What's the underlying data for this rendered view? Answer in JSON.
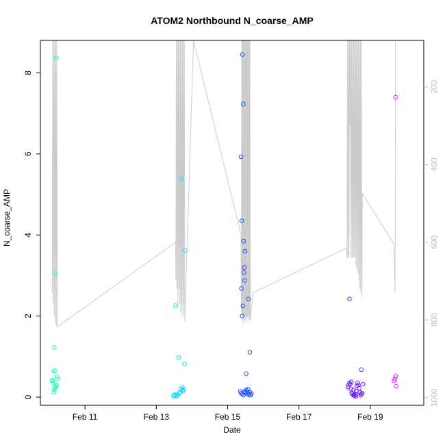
{
  "chart_data": {
    "type": "scatter",
    "title": "ATOM2 Northbound N_coarse_AMP",
    "xlabel": "Date",
    "ylabel": "N_coarse_AMP",
    "xlim": [
      "2024-02-09T18:00",
      "2024-02-20T12:00"
    ],
    "ylim": [
      -0.2,
      8.8
    ],
    "x_ticks": [
      {
        "label": "Feb 11",
        "x": "2024-02-11T00:00"
      },
      {
        "label": "Feb 13",
        "x": "2024-02-13T00:00"
      },
      {
        "label": "Feb 15",
        "x": "2024-02-15T00:00"
      },
      {
        "label": "Feb 17",
        "x": "2024-02-17T00:00"
      },
      {
        "label": "Feb 19",
        "x": "2024-02-19T00:00"
      }
    ],
    "y_ticks": [
      0,
      2,
      4,
      6,
      8
    ],
    "right_axis": {
      "ylim": [
        1020,
        80
      ],
      "ticks": [
        200,
        400,
        600,
        800,
        1000
      ],
      "color": "#bfbfbf"
    },
    "series": [
      {
        "color": "#19ffb2",
        "points": [
          [
            "2024-02-10T03:20",
            1.23
          ],
          [
            "2024-02-10T04:00",
            3.05
          ],
          [
            "2024-02-10T04:45",
            8.37
          ],
          [
            "2024-02-10T02:00",
            0.42
          ],
          [
            "2024-02-10T02:30",
            0.35
          ],
          [
            "2024-02-10T03:00",
            0.65
          ],
          [
            "2024-02-10T03:40",
            0.22
          ],
          [
            "2024-02-10T04:10",
            0.65
          ],
          [
            "2024-02-10T04:30",
            0.3
          ],
          [
            "2024-02-10T05:10",
            0.5
          ],
          [
            "2024-02-10T05:40",
            0.45
          ],
          [
            "2024-02-10T02:50",
            0.12
          ],
          [
            "2024-02-10T03:30",
            0.18
          ],
          [
            "2024-02-10T04:20",
            0.25
          ],
          [
            "2024-02-10T05:00",
            0.28
          ],
          [
            "2024-02-10T02:20",
            0.4
          ]
        ]
      },
      {
        "color": "#19d4ff",
        "points": [
          [
            "2024-02-13T11:30",
            0.03
          ],
          [
            "2024-02-13T12:00",
            0.06
          ],
          [
            "2024-02-13T13:00",
            2.26
          ],
          [
            "2024-02-13T14:00",
            0.07
          ],
          [
            "2024-02-13T15:00",
            0.98
          ],
          [
            "2024-02-13T15:30",
            0.1
          ],
          [
            "2024-02-13T16:00",
            0.12
          ],
          [
            "2024-02-13T16:30",
            0.2
          ],
          [
            "2024-02-13T17:00",
            5.38
          ],
          [
            "2024-02-13T17:30",
            0.25
          ],
          [
            "2024-02-13T18:00",
            0.15
          ],
          [
            "2024-02-13T18:30",
            0.2
          ],
          [
            "2024-02-13T19:00",
            0.82
          ],
          [
            "2024-02-13T19:30",
            3.62
          ],
          [
            "2024-02-13T13:30",
            0.02
          ],
          [
            "2024-02-13T14:30",
            0.05
          ],
          [
            "2024-02-13T17:45",
            0.18
          ],
          [
            "2024-02-13T12:30",
            0.04
          ]
        ]
      },
      {
        "color": "#1f4fff",
        "points": [
          [
            "2024-02-15T09:00",
            5.93
          ],
          [
            "2024-02-15T09:30",
            4.35
          ],
          [
            "2024-02-15T10:00",
            8.45
          ],
          [
            "2024-02-15T10:30",
            7.23
          ],
          [
            "2024-02-15T10:45",
            3.85
          ],
          [
            "2024-02-15T11:00",
            3.07
          ],
          [
            "2024-02-15T11:15",
            3.2
          ],
          [
            "2024-02-15T11:30",
            2.88
          ],
          [
            "2024-02-15T11:45",
            3.6
          ],
          [
            "2024-02-15T09:15",
            2.68
          ],
          [
            "2024-02-15T09:45",
            2.0
          ],
          [
            "2024-02-15T10:15",
            2.25
          ],
          [
            "2024-02-15T14:00",
            2.42
          ],
          [
            "2024-02-15T15:00",
            1.11
          ],
          [
            "2024-02-15T12:30",
            0.58
          ],
          [
            "2024-02-15T08:30",
            0.15
          ],
          [
            "2024-02-15T09:00",
            0.1
          ],
          [
            "2024-02-15T10:00",
            0.08
          ],
          [
            "2024-02-15T10:30",
            0.05
          ],
          [
            "2024-02-15T11:00",
            0.12
          ],
          [
            "2024-02-15T12:00",
            0.1
          ],
          [
            "2024-02-15T12:30",
            0.18
          ],
          [
            "2024-02-15T13:00",
            0.15
          ],
          [
            "2024-02-15T13:30",
            0.1
          ],
          [
            "2024-02-15T14:00",
            0.06
          ],
          [
            "2024-02-15T14:30",
            0.08
          ],
          [
            "2024-02-15T15:00",
            0.12
          ],
          [
            "2024-02-15T15:30",
            0.05
          ],
          [
            "2024-02-15T16:00",
            0.09
          ],
          [
            "2024-02-15T13:45",
            0.2
          ],
          [
            "2024-02-15T11:30",
            0.14
          ]
        ]
      },
      {
        "color": "#6a1fff",
        "points": [
          [
            "2024-02-18T10:00",
            2.42
          ],
          [
            "2024-02-18T18:00",
            0.68
          ],
          [
            "2024-02-18T09:00",
            0.25
          ],
          [
            "2024-02-18T09:30",
            0.3
          ],
          [
            "2024-02-18T10:00",
            0.35
          ],
          [
            "2024-02-18T10:30",
            0.32
          ],
          [
            "2024-02-18T11:00",
            0.2
          ],
          [
            "2024-02-18T11:30",
            0.1
          ],
          [
            "2024-02-18T12:00",
            0.08
          ],
          [
            "2024-02-18T12:30",
            0.05
          ],
          [
            "2024-02-18T13:00",
            0.06
          ],
          [
            "2024-02-18T13:30",
            0.04
          ],
          [
            "2024-02-18T14:00",
            0.07
          ],
          [
            "2024-02-18T14:30",
            0.15
          ],
          [
            "2024-02-18T15:00",
            0.28
          ],
          [
            "2024-02-18T15:30",
            0.35
          ],
          [
            "2024-02-18T16:00",
            0.3
          ],
          [
            "2024-02-18T16:30",
            0.22
          ],
          [
            "2024-02-18T17:00",
            0.12
          ],
          [
            "2024-02-18T17:30",
            0.05
          ],
          [
            "2024-02-18T18:00",
            0.08
          ],
          [
            "2024-02-18T18:30",
            0.1
          ],
          [
            "2024-02-18T19:00",
            0.32
          ],
          [
            "2024-02-18T11:15",
            0.38
          ],
          [
            "2024-02-18T12:45",
            0.18
          ],
          [
            "2024-02-18T14:15",
            0.02
          ]
        ]
      },
      {
        "color": "#e619ff",
        "points": [
          [
            "2024-02-19T17:00",
            7.4
          ],
          [
            "2024-02-19T16:00",
            0.4
          ],
          [
            "2024-02-19T16:30",
            0.45
          ],
          [
            "2024-02-19T17:00",
            0.52
          ],
          [
            "2024-02-19T17:30",
            0.27
          ]
        ]
      }
    ],
    "depth_trace": {
      "color": "#cccccc",
      "axis": "right",
      "points": [
        [
          "2024-02-10T02:00",
          730
        ],
        [
          "2024-02-10T02:20",
          80
        ],
        [
          "2024-02-10T02:40",
          760
        ],
        [
          "2024-02-10T03:00",
          80
        ],
        [
          "2024-02-10T03:20",
          790
        ],
        [
          "2024-02-10T03:40",
          80
        ],
        [
          "2024-02-10T04:00",
          810
        ],
        [
          "2024-02-10T04:20",
          80
        ],
        [
          "2024-02-10T04:40",
          815
        ],
        [
          "2024-02-10T05:00",
          80
        ],
        [
          "2024-02-10T05:20",
          818
        ],
        [
          "2024-02-13T13:00",
          600
        ],
        [
          "2024-02-13T13:10",
          700
        ],
        [
          "2024-02-13T13:30",
          80
        ],
        [
          "2024-02-13T13:50",
          720
        ],
        [
          "2024-02-13T14:10",
          80
        ],
        [
          "2024-02-13T14:30",
          770
        ],
        [
          "2024-02-13T14:50",
          80
        ],
        [
          "2024-02-13T15:10",
          720
        ],
        [
          "2024-02-13T15:30",
          80
        ],
        [
          "2024-02-13T15:50",
          760
        ],
        [
          "2024-02-13T16:10",
          80
        ],
        [
          "2024-02-13T16:30",
          780
        ],
        [
          "2024-02-13T16:50",
          80
        ],
        [
          "2024-02-13T17:10",
          790
        ],
        [
          "2024-02-13T17:30",
          80
        ],
        [
          "2024-02-13T17:50",
          760
        ],
        [
          "2024-02-13T18:10",
          80
        ],
        [
          "2024-02-13T18:30",
          790
        ],
        [
          "2024-02-13T18:50",
          80
        ],
        [
          "2024-02-13T19:10",
          805
        ],
        [
          "2024-02-14T01:00",
          80
        ],
        [
          "2024-02-15T09:00",
          580
        ],
        [
          "2024-02-15T09:15",
          780
        ],
        [
          "2024-02-15T09:30",
          80
        ],
        [
          "2024-02-15T09:45",
          790
        ],
        [
          "2024-02-15T10:00",
          80
        ],
        [
          "2024-02-15T10:15",
          800
        ],
        [
          "2024-02-15T10:30",
          80
        ],
        [
          "2024-02-15T10:45",
          810
        ],
        [
          "2024-02-15T11:00",
          80
        ],
        [
          "2024-02-15T11:15",
          790
        ],
        [
          "2024-02-15T11:30",
          80
        ],
        [
          "2024-02-15T11:45",
          800
        ],
        [
          "2024-02-15T12:00",
          80
        ],
        [
          "2024-02-15T12:15",
          795
        ],
        [
          "2024-02-15T12:30",
          80
        ],
        [
          "2024-02-15T12:45",
          805
        ],
        [
          "2024-02-15T13:00",
          80
        ],
        [
          "2024-02-15T13:15",
          790
        ],
        [
          "2024-02-15T13:30",
          80
        ],
        [
          "2024-02-15T13:45",
          800
        ],
        [
          "2024-02-15T14:00",
          80
        ],
        [
          "2024-02-15T14:15",
          790
        ],
        [
          "2024-02-15T14:30",
          80
        ],
        [
          "2024-02-15T14:45",
          800
        ],
        [
          "2024-02-15T15:00",
          80
        ],
        [
          "2024-02-15T15:15",
          800
        ],
        [
          "2024-02-15T17:00",
          730
        ],
        [
          "2024-02-18T08:00",
          615
        ],
        [
          "2024-02-18T08:20",
          640
        ],
        [
          "2024-02-18T08:40",
          80
        ],
        [
          "2024-02-18T09:00",
          640
        ],
        [
          "2024-02-18T09:20",
          80
        ],
        [
          "2024-02-18T09:40",
          640
        ],
        [
          "2024-02-18T10:00",
          80
        ],
        [
          "2024-02-18T10:20",
          300
        ],
        [
          "2024-02-18T10:40",
          80
        ],
        [
          "2024-02-18T11:00",
          640
        ],
        [
          "2024-02-18T11:20",
          80
        ],
        [
          "2024-02-18T11:40",
          640
        ],
        [
          "2024-02-18T12:00",
          80
        ],
        [
          "2024-02-18T12:20",
          640
        ],
        [
          "2024-02-18T12:40",
          80
        ],
        [
          "2024-02-18T13:00",
          640
        ],
        [
          "2024-02-18T13:20",
          80
        ],
        [
          "2024-02-18T13:40",
          640
        ],
        [
          "2024-02-18T14:00",
          80
        ],
        [
          "2024-02-18T14:20",
          660
        ],
        [
          "2024-02-18T14:40",
          80
        ],
        [
          "2024-02-18T15:00",
          670
        ],
        [
          "2024-02-18T15:20",
          80
        ],
        [
          "2024-02-18T15:40",
          680
        ],
        [
          "2024-02-18T16:00",
          80
        ],
        [
          "2024-02-18T16:20",
          700
        ],
        [
          "2024-02-18T16:40",
          80
        ],
        [
          "2024-02-18T17:00",
          720
        ],
        [
          "2024-02-18T17:20",
          80
        ],
        [
          "2024-02-18T17:40",
          730
        ],
        [
          "2024-02-18T18:00",
          80
        ],
        [
          "2024-02-18T18:20",
          740
        ],
        [
          "2024-02-18T18:40",
          475
        ],
        [
          "2024-02-19T16:00",
          605
        ],
        [
          "2024-02-19T16:40",
          730
        ],
        [
          "2024-02-19T17:00",
          80
        ]
      ]
    },
    "grid": false
  }
}
